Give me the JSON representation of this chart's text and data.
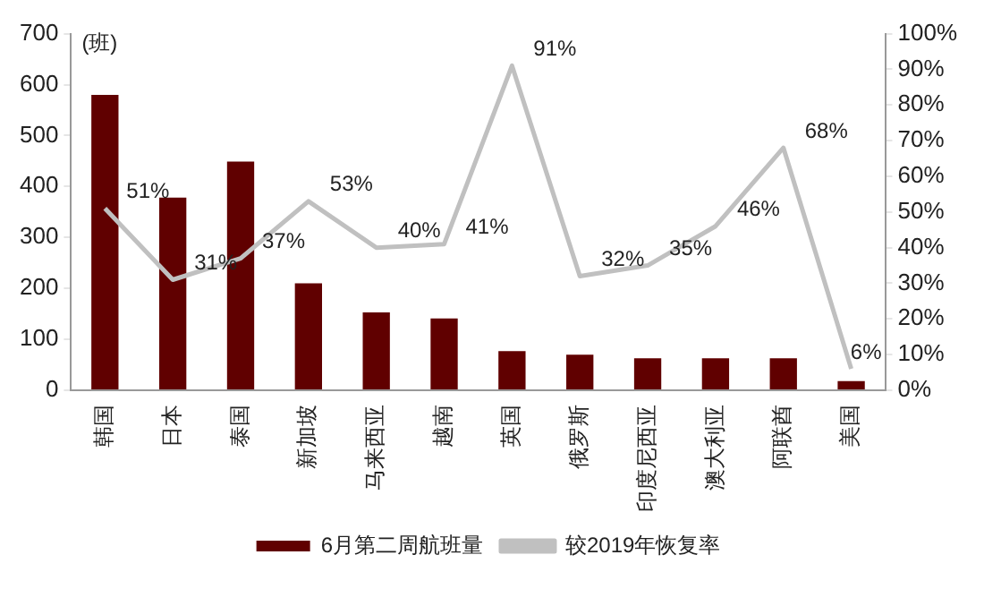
{
  "chart_data": {
    "type": "bar",
    "ylabel": "(班)",
    "categories": [
      "韩国",
      "日本",
      "泰国",
      "新加坡",
      "马来西亚",
      "越南",
      "英国",
      "俄罗斯",
      "印度尼西亚",
      "澳大利亚",
      "阿联酋",
      "美国"
    ],
    "series": [
      {
        "name": "6月第二周航班量",
        "color": "#600000",
        "values": [
          580,
          378,
          449,
          210,
          153,
          141,
          77,
          70,
          63,
          63,
          63,
          18
        ]
      },
      {
        "name": "较2019年恢复率",
        "type": "line",
        "axis": "y2",
        "color": "#c0c0c0",
        "values": [
          51,
          31,
          37,
          53,
          40,
          41,
          91,
          32,
          35,
          46,
          68,
          6
        ],
        "value_labels": [
          "51%",
          "31%",
          "37%",
          "53%",
          "40%",
          "41%",
          "91%",
          "32%",
          "35%",
          "46%",
          "68%",
          "6%"
        ]
      }
    ],
    "ylim": [
      0,
      700
    ],
    "yticks": [
      0,
      100,
      200,
      300,
      400,
      500,
      600,
      700
    ],
    "y2lim": [
      0,
      100
    ],
    "y2ticks": [
      {
        "value": 0,
        "label": "0%"
      },
      {
        "value": 10,
        "label": "10%"
      },
      {
        "value": 20,
        "label": "20%"
      },
      {
        "value": 30,
        "label": "30%"
      },
      {
        "value": 40,
        "label": "40%"
      },
      {
        "value": 50,
        "label": "50%"
      },
      {
        "value": 60,
        "label": "60%"
      },
      {
        "value": 70,
        "label": "70%"
      },
      {
        "value": 80,
        "label": "80%"
      },
      {
        "value": 90,
        "label": "90%"
      },
      {
        "value": 100,
        "label": "100%"
      }
    ],
    "grid": false,
    "legend": "bottom",
    "marker": "none",
    "line_style": "solid"
  }
}
